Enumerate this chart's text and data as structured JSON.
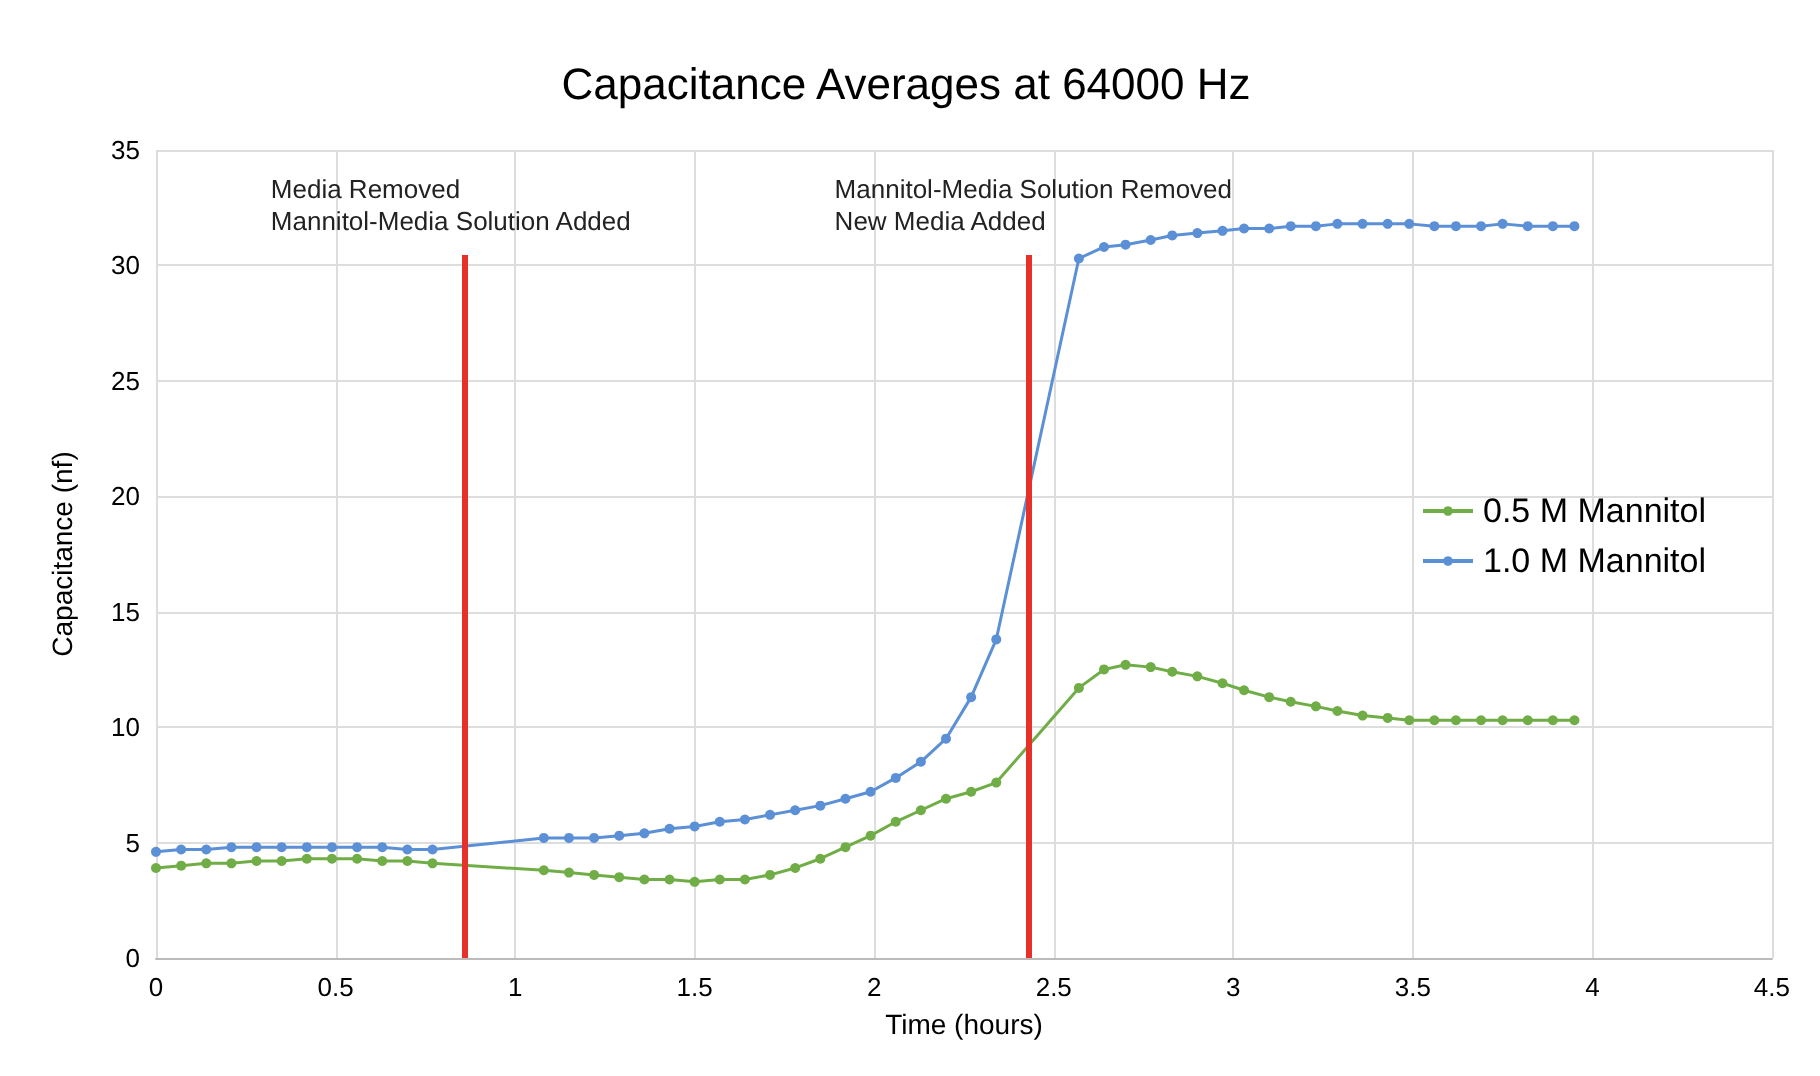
{
  "chart_data": {
    "type": "line",
    "title": "Capacitance Averages at 64000 Hz",
    "xlabel": "Time (hours)",
    "ylabel": "Capacitance (nf)",
    "xlim": [
      0,
      4.5
    ],
    "xticks": [
      0,
      0.5,
      1,
      1.5,
      2,
      2.5,
      3,
      3.5,
      4,
      4.5
    ],
    "ylim": [
      0,
      35
    ],
    "yticks": [
      0,
      5,
      10,
      15,
      20,
      25,
      30,
      35
    ],
    "grid": true,
    "legend": "right",
    "marker": "circle",
    "line_style": "solid",
    "x": [
      0,
      0.07,
      0.14,
      0.21,
      0.28,
      0.35,
      0.42,
      0.49,
      0.56,
      0.63,
      0.7,
      0.77,
      1.08,
      1.15,
      1.22,
      1.29,
      1.36,
      1.43,
      1.5,
      1.57,
      1.64,
      1.71,
      1.78,
      1.85,
      1.92,
      1.99,
      2.06,
      2.13,
      2.2,
      2.27,
      2.34,
      2.57,
      2.64,
      2.7,
      2.77,
      2.83,
      2.9,
      2.97,
      3.03,
      3.1,
      3.16,
      3.23,
      3.29,
      3.36,
      3.43,
      3.49,
      3.56,
      3.62,
      3.69,
      3.75,
      3.82,
      3.89,
      3.95
    ],
    "series": [
      {
        "name": "0.5 M Mannitol",
        "color": "#70ad47",
        "values": [
          3.9,
          4.0,
          4.1,
          4.1,
          4.2,
          4.2,
          4.3,
          4.3,
          4.3,
          4.2,
          4.2,
          4.1,
          3.8,
          3.7,
          3.6,
          3.5,
          3.4,
          3.4,
          3.3,
          3.4,
          3.4,
          3.6,
          3.9,
          4.3,
          4.8,
          5.3,
          5.9,
          6.4,
          6.9,
          7.2,
          7.6,
          11.7,
          12.5,
          12.7,
          12.6,
          12.4,
          12.2,
          11.9,
          11.6,
          11.3,
          11.1,
          10.9,
          10.7,
          10.5,
          10.4,
          10.3,
          10.3,
          10.3,
          10.3,
          10.3,
          10.3,
          10.3,
          10.3
        ]
      },
      {
        "name": "1.0 M Mannitol",
        "color": "#5b8fd6",
        "values": [
          4.6,
          4.7,
          4.7,
          4.8,
          4.8,
          4.8,
          4.8,
          4.8,
          4.8,
          4.8,
          4.7,
          4.7,
          5.2,
          5.2,
          5.2,
          5.3,
          5.4,
          5.6,
          5.7,
          5.9,
          6.0,
          6.2,
          6.4,
          6.6,
          6.9,
          7.2,
          7.8,
          8.5,
          9.5,
          11.3,
          13.8,
          30.3,
          30.8,
          30.9,
          31.1,
          31.3,
          31.4,
          31.5,
          31.6,
          31.6,
          31.7,
          31.7,
          31.8,
          31.8,
          31.8,
          31.8,
          31.7,
          31.7,
          31.7,
          31.8,
          31.7,
          31.7,
          31.7
        ]
      }
    ],
    "ref_lines": [
      {
        "axis": "x",
        "value": 0.86,
        "label": "Media Removed\nMannitol-Media Solution Added",
        "color": "#e8302a"
      },
      {
        "axis": "x",
        "value": 2.43,
        "label": "Mannitol-Media Solution Removed\nNew Media Added",
        "color": "#e8302a"
      }
    ]
  }
}
